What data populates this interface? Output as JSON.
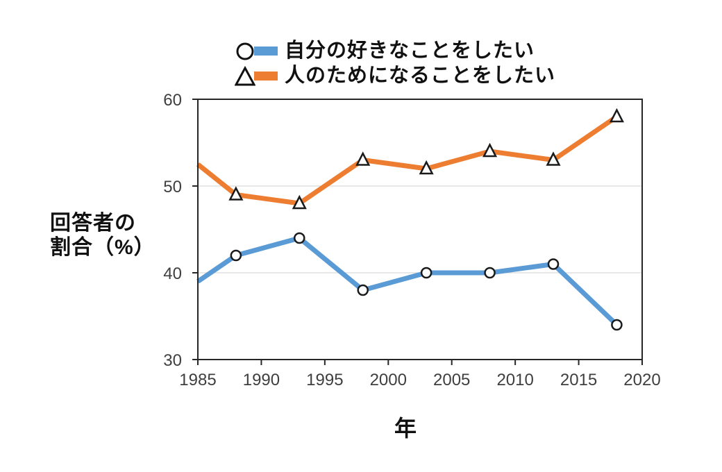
{
  "legend": {
    "items": [
      {
        "label": "自分の好きなことをしたい",
        "marker": "circle",
        "color": "#5B9BD5"
      },
      {
        "label": "人のためになることをしたい",
        "marker": "triangle",
        "color": "#ED7D31"
      }
    ]
  },
  "axes": {
    "ylabel_line1": "回答者の",
    "ylabel_line2": "割合（%）",
    "xlabel": "年"
  },
  "chart_data": {
    "type": "line",
    "title": "",
    "x": [
      1985,
      1988,
      1993,
      1998,
      2003,
      2008,
      2013,
      2018
    ],
    "series": [
      {
        "name": "自分の好きなことをしたい",
        "marker": "circle",
        "color": "#5B9BD5",
        "values": [
          39,
          42,
          44,
          38,
          40,
          40,
          41,
          34
        ]
      },
      {
        "name": "人のためになることをしたい",
        "marker": "triangle",
        "color": "#ED7D31",
        "values": [
          52.5,
          49,
          48,
          53,
          52,
          54,
          53,
          58
        ]
      }
    ],
    "xlabel": "年",
    "ylabel": "回答者の割合（%）",
    "xlim": [
      1985,
      2020
    ],
    "ylim": [
      30,
      60
    ],
    "xticks": [
      1985,
      1990,
      1995,
      2000,
      2005,
      2010,
      2015,
      2020
    ],
    "yticks": [
      30,
      40,
      50,
      60
    ],
    "gridlines": [
      40,
      50
    ],
    "grid": "horizontal-only",
    "legend_position": "top-center",
    "first_point_marker_hidden": true,
    "colors": {
      "axis": "#262626",
      "grid": "#d9d9d9",
      "marker_fill": "#ffffff",
      "marker_stroke": "#1a1a1a",
      "tick_text": "#3f3f3f"
    }
  }
}
